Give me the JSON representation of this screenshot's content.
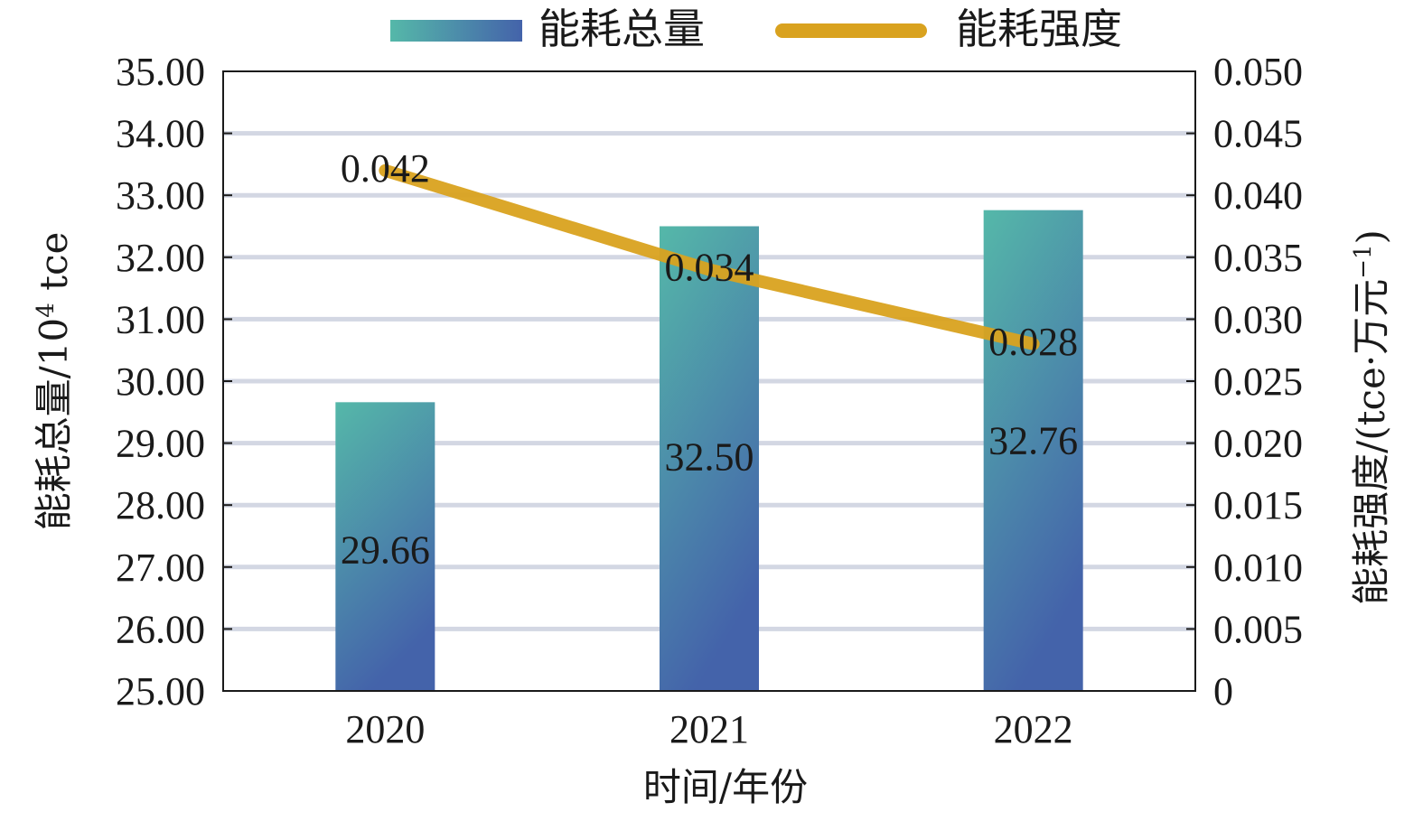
{
  "chart_data": {
    "type": "bar",
    "categories": [
      "2020",
      "2021",
      "2022"
    ],
    "series": [
      {
        "name": "能耗总量",
        "type": "bar",
        "axis": "left",
        "values": [
          29.66,
          32.5,
          32.76
        ],
        "labels": [
          "29.66",
          "32.50",
          "32.76"
        ],
        "color_top": "#55b8a9",
        "color_bottom": "#4463aa"
      },
      {
        "name": "能耗强度",
        "type": "line",
        "axis": "right",
        "values": [
          0.042,
          0.034,
          0.028
        ],
        "labels": [
          "0.042",
          "0.034",
          "0.028"
        ],
        "color": "#d9a21f"
      }
    ],
    "xlabel": "时间/年份",
    "ylabel_left": {
      "main": "能耗总量/10",
      "sup": "4",
      "unit": " tce"
    },
    "ylabel_right": {
      "main": "能耗强度/(tce·万元",
      "sup": "−1",
      "close": ")"
    },
    "ylim_left": [
      25,
      35
    ],
    "ylim_right": [
      0,
      0.05
    ],
    "yticks_left": [
      "25.00",
      "26.00",
      "27.00",
      "28.00",
      "29.00",
      "30.00",
      "31.00",
      "32.00",
      "33.00",
      "34.00",
      "35.00"
    ],
    "yticks_right": [
      "0",
      "0.005",
      "0.010",
      "0.015",
      "0.020",
      "0.025",
      "0.030",
      "0.035",
      "0.040",
      "0.045",
      "0.050"
    ],
    "grid": true,
    "grid_color": "#d3d7e3",
    "legend_position": "top-center"
  }
}
